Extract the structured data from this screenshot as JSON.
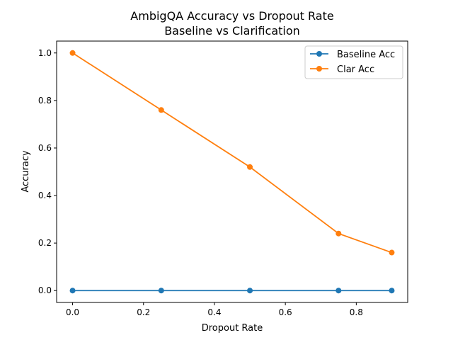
{
  "chart_data": {
    "type": "line",
    "title": "AmbigQA Accuracy vs Dropout Rate",
    "subtitle": "Baseline vs Clarification",
    "xlabel": "Dropout Rate",
    "ylabel": "Accuracy",
    "x": [
      0.0,
      0.25,
      0.5,
      0.75,
      0.9
    ],
    "xlim": [
      -0.045,
      0.945
    ],
    "ylim": [
      -0.05,
      1.05
    ],
    "xticks": [
      "0.0",
      "0.2",
      "0.4",
      "0.6",
      "0.8"
    ],
    "yticks": [
      "0.0",
      "0.2",
      "0.4",
      "0.6",
      "0.8",
      "1.0"
    ],
    "grid": false,
    "legend_position": "top-right",
    "series": [
      {
        "name": "Baseline Acc",
        "color": "#1f77b4",
        "values": [
          0.0,
          0.0,
          0.0,
          0.0,
          0.0
        ]
      },
      {
        "name": "Clar Acc",
        "color": "#ff7f0e",
        "values": [
          1.0,
          0.76,
          0.52,
          0.24,
          0.16
        ]
      }
    ]
  }
}
